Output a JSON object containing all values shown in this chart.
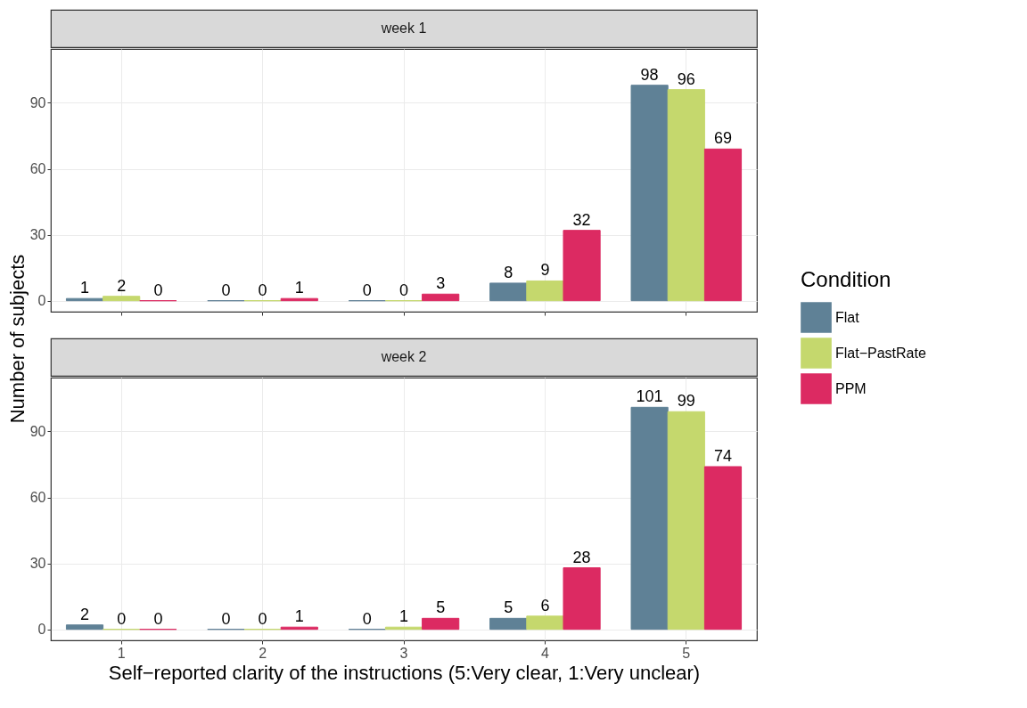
{
  "chart_data": [
    {
      "type": "bar",
      "title": "week 1",
      "ylabel": "Number of subjects",
      "categories": [
        "1",
        "2",
        "3",
        "4",
        "5"
      ],
      "series": [
        {
          "name": "Flat",
          "color": "#5f8196",
          "values": [
            1,
            0,
            0,
            8,
            98
          ]
        },
        {
          "name": "Flat−PastRate",
          "color": "#c5d86d",
          "values": [
            2,
            0,
            0,
            9,
            96
          ]
        },
        {
          "name": "PPM",
          "color": "#dc2a62",
          "values": [
            0,
            1,
            3,
            32,
            69
          ]
        }
      ],
      "ylim": [
        -5,
        114.5
      ],
      "yticks": [
        0,
        30,
        60,
        90
      ],
      "grid": true,
      "data_labels": true,
      "legend": "right",
      "legend_title": "Condition",
      "tick_labels": "y"
    },
    {
      "type": "bar",
      "title": "week 2",
      "xlabel": "Self−reported clarity of the instructions (5:Very clear, 1:Very unclear)",
      "categories": [
        "1",
        "2",
        "3",
        "4",
        "5"
      ],
      "series": [
        {
          "name": "Flat",
          "color": "#5f8196",
          "values": [
            2,
            0,
            0,
            5,
            101
          ]
        },
        {
          "name": "Flat−PastRate",
          "color": "#c5d86d",
          "values": [
            0,
            0,
            1,
            6,
            99
          ]
        },
        {
          "name": "PPM",
          "color": "#dc2a62",
          "values": [
            0,
            1,
            5,
            28,
            74
          ]
        }
      ],
      "ylim": [
        -5,
        114.5
      ],
      "yticks": [
        0,
        30,
        60,
        90
      ],
      "grid": true,
      "data_labels": true
    }
  ]
}
